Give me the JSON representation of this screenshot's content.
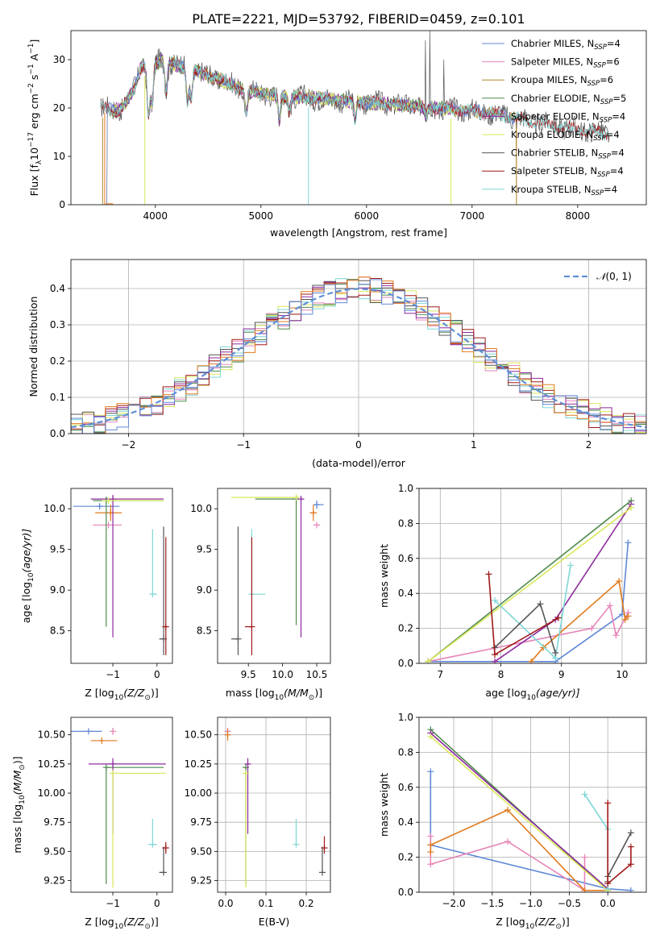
{
  "figure_title": "PLATE=2221, MJD=53792, FIBERID=0459, z=0.101",
  "colors": {
    "Chabrier MILES": "#5f88d6",
    "Salpeter MILES": "#e685b9",
    "Kroupa MILES": "#b3862a",
    "Chabrier ELODIE": "#4f8a4f",
    "Salpeter ELODIE": "#8e2a9e",
    "Kroupa ELODIE": "#d9e85a",
    "Chabrier STELIB": "#555555",
    "Salpeter STELIB": "#a01818",
    "Kroupa STELIB": "#7fd6d6",
    "orange": "#e07a1e",
    "normal": "#5f8fd6"
  },
  "chart_data": [
    {
      "id": "spectrum",
      "type": "line",
      "xlabel": "wavelength [Angstrom, rest frame]",
      "ylabel": "Flux [f",
      "ylabel_parts": [
        "Flux [f",
        "λ",
        "10",
        "−17",
        " erg cm",
        "−2",
        " s",
        "−1",
        " A",
        "−1",
        "]"
      ],
      "xlim": [
        3200,
        8650
      ],
      "ylim": [
        0,
        36
      ],
      "xticks": [
        4000,
        5000,
        6000,
        7000,
        8000
      ],
      "yticks": [
        0,
        10,
        20,
        30
      ],
      "legend_position": "upper right",
      "series": [
        {
          "name": "Chabrier MILES",
          "label": "Chabrier MILES, N",
          "sub": "SSP",
          "n": "=4"
        },
        {
          "name": "Salpeter MILES",
          "label": "Salpeter MILES, N",
          "sub": "SSP",
          "n": "=6"
        },
        {
          "name": "Kroupa MILES",
          "label": "Kroupa MILES, N",
          "sub": "SSP",
          "n": "=6"
        },
        {
          "name": "Chabrier ELODIE",
          "label": "Chabrier ELODIE, N",
          "sub": "SSP",
          "n": "=5"
        },
        {
          "name": "Salpeter ELODIE",
          "label": "Salpeter ELODIE, N",
          "sub": "SSP",
          "n": "=4"
        },
        {
          "name": "Kroupa ELODIE",
          "label": "Kroupa ELODIE, N",
          "sub": "SSP",
          "n": "=4"
        },
        {
          "name": "Chabrier STELIB",
          "label": "Chabrier STELIB, N",
          "sub": "SSP",
          "n": "=4"
        },
        {
          "name": "Salpeter STELIB",
          "label": "Salpeter STELIB, N",
          "sub": "SSP",
          "n": "=4"
        },
        {
          "name": "Kroupa STELIB",
          "label": "Kroupa STELIB, N",
          "sub": "SSP",
          "n": "=4"
        }
      ],
      "continuum_x": [
        3500,
        3650,
        3720,
        3800,
        3870,
        3950,
        4050,
        4200,
        4400,
        4600,
        4800,
        5000,
        5200,
        5500,
        5800,
        6100,
        6400,
        6700,
        7000,
        7300,
        7600,
        7900,
        8200,
        8300
      ],
      "continuum_y": [
        20,
        19.5,
        21,
        24,
        29,
        28,
        30,
        29,
        27.5,
        26,
        24,
        23,
        22.5,
        22,
        21.5,
        21,
        20.5,
        20,
        19.5,
        18.5,
        17,
        16,
        15,
        14.8
      ],
      "absorption_features": [
        {
          "x": 3934,
          "depth": 10
        },
        {
          "x": 3968,
          "depth": 8
        },
        {
          "x": 4102,
          "depth": 6
        },
        {
          "x": 4304,
          "depth": 7
        },
        {
          "x": 4340,
          "depth": 6
        },
        {
          "x": 4861,
          "depth": 5
        },
        {
          "x": 5175,
          "depth": 5
        },
        {
          "x": 5270,
          "depth": 3
        },
        {
          "x": 5890,
          "depth": 4
        },
        {
          "x": 6563,
          "depth": 2
        }
      ],
      "drops_to_zero": [
        3500,
        3900,
        5450,
        6800,
        7420
      ],
      "spikes": [
        {
          "x": 6560,
          "y": 34
        },
        {
          "x": 6600,
          "y": 36
        },
        {
          "x": 6730,
          "y": 30
        }
      ]
    },
    {
      "id": "residuals",
      "type": "step",
      "xlabel": "(data-model)/error",
      "ylabel": "Normed distribution",
      "xlim": [
        -2.5,
        2.5
      ],
      "ylim": [
        0,
        0.48
      ],
      "xticks": [
        -2,
        -1,
        0,
        1,
        2
      ],
      "yticks": [
        0.0,
        0.1,
        0.2,
        0.3,
        0.4
      ],
      "grid": true,
      "legend_position": "upper right",
      "normal_label": "(0, 1)",
      "bin_width": 0.1
    },
    {
      "id": "age_vs_Z",
      "type": "errorbar",
      "xlabel": "Z [log",
      "xlabel_sub": "10",
      "xlabel_rest": "(Z/Z",
      "ylabel": "age  [log",
      "ylabel_sub": "10",
      "ylabel_rest": "(age/yr)]",
      "xlim": [
        -1.95,
        0.35
      ],
      "ylim": [
        8.1,
        10.25
      ],
      "xticks": [
        -1,
        0
      ],
      "yticks": [
        8.5,
        9.0,
        9.5,
        10.0
      ],
      "points": [
        {
          "s": "Chabrier MILES",
          "x": -1.3,
          "y": 10.03,
          "xerr": [
            0.6,
            0.45
          ],
          "yerr": [
            0.03,
            0.03
          ]
        },
        {
          "s": "Salpeter MILES",
          "x": -1.1,
          "y": 9.8,
          "xerr": [
            0.35,
            0.3
          ],
          "yerr": [
            0.0,
            0.0
          ]
        },
        {
          "s": "orange",
          "x": -1.05,
          "y": 9.95,
          "xerr": [
            0.35,
            0.25
          ],
          "yerr": [
            0.1,
            0.1
          ]
        },
        {
          "s": "Chabrier ELODIE",
          "x": -1.15,
          "y": 10.1,
          "xerr": [
            0.3,
            1.3
          ],
          "yerr": [
            1.55,
            0.05
          ]
        },
        {
          "s": "Salpeter ELODIE",
          "x": -1.0,
          "y": 10.12,
          "xerr": [
            0.5,
            1.15
          ],
          "yerr": [
            1.7,
            0.05
          ]
        },
        {
          "s": "Kroupa ELODIE",
          "x": -1.1,
          "y": 10.1,
          "xerr": [
            0.15,
            1.25
          ],
          "yerr": [
            0.0,
            0.0
          ]
        },
        {
          "s": "Kroupa STELIB",
          "x": -0.1,
          "y": 8.95,
          "xerr": [
            0.0,
            0.1
          ],
          "yerr": [
            0.0,
            0.8
          ]
        },
        {
          "s": "Chabrier STELIB",
          "x": 0.15,
          "y": 8.4,
          "xerr": [
            0.1,
            0.0
          ],
          "yerr": [
            0.2,
            1.38
          ]
        },
        {
          "s": "Salpeter STELIB",
          "x": 0.2,
          "y": 8.55,
          "xerr": [
            0.08,
            0.0
          ],
          "yerr": [
            0.35,
            1.1
          ]
        }
      ]
    },
    {
      "id": "age_vs_mass",
      "type": "errorbar",
      "xlabel": "mass [log",
      "xlabel_sub": "10",
      "xlabel_rest": "(M/M",
      "xlim": [
        9.05,
        10.7
      ],
      "ylim": [
        8.1,
        10.25
      ],
      "xticks": [
        9.5,
        10.0,
        10.5
      ],
      "yticks": [
        8.5,
        9.0,
        9.5,
        10.0
      ],
      "points": [
        {
          "s": "Chabrier MILES",
          "x": 10.5,
          "y": 10.05,
          "xerr": [
            0.05,
            0.1
          ],
          "yerr": [
            0.05,
            0.05
          ]
        },
        {
          "s": "Salpeter MILES",
          "x": 10.5,
          "y": 9.8,
          "xerr": [
            0.05,
            0.05
          ],
          "yerr": [
            0.0,
            0.0
          ]
        },
        {
          "s": "orange",
          "x": 10.45,
          "y": 9.95,
          "xerr": [
            0.05,
            0.05
          ],
          "yerr": [
            0.1,
            0.1
          ]
        },
        {
          "s": "Chabrier ELODIE",
          "x": 10.2,
          "y": 10.12,
          "xerr": [
            0.6,
            0.0
          ],
          "yerr": [
            1.55,
            0.03
          ]
        },
        {
          "s": "Salpeter ELODIE",
          "x": 10.27,
          "y": 10.12,
          "xerr": [
            0.0,
            0.03
          ],
          "yerr": [
            1.7,
            0.03
          ]
        },
        {
          "s": "Kroupa ELODIE",
          "x": 10.2,
          "y": 10.14,
          "xerr": [
            0.95,
            0.0
          ],
          "yerr": [
            0.0,
            0.0
          ]
        },
        {
          "s": "Kroupa STELIB",
          "x": 9.55,
          "y": 8.95,
          "xerr": [
            0.0,
            0.2
          ],
          "yerr": [
            0.0,
            0.8
          ]
        },
        {
          "s": "Chabrier STELIB",
          "x": 9.35,
          "y": 8.4,
          "xerr": [
            0.1,
            0.0
          ],
          "yerr": [
            0.2,
            1.38
          ]
        },
        {
          "s": "Salpeter STELIB",
          "x": 9.55,
          "y": 8.55,
          "xerr": [
            0.1,
            0.0
          ],
          "yerr": [
            0.35,
            1.1
          ]
        }
      ]
    },
    {
      "id": "weight_vs_age",
      "type": "line",
      "xlabel": "age  [log",
      "xlabel_sub": "10",
      "xlabel_rest": "(age/yr)]",
      "ylabel": "mass weight",
      "xlim": [
        6.65,
        10.4
      ],
      "ylim": [
        0,
        1.0
      ],
      "xticks": [
        7,
        8,
        9,
        10
      ],
      "yticks": [
        0.0,
        0.2,
        0.4,
        0.6,
        0.8,
        1.0
      ],
      "grid": true,
      "lines": [
        {
          "s": "Chabrier MILES",
          "x": [
            6.8,
            8.9,
            10.0,
            10.1
          ],
          "y": [
            0.01,
            0.01,
            0.28,
            0.69
          ]
        },
        {
          "s": "Salpeter MILES",
          "x": [
            6.8,
            9.5,
            9.8,
            9.9,
            10.1
          ],
          "y": [
            0.01,
            0.2,
            0.33,
            0.16,
            0.29
          ]
        },
        {
          "s": "orange",
          "x": [
            8.5,
            8.7,
            9.95,
            10.05,
            10.1
          ],
          "y": [
            0.01,
            0.09,
            0.47,
            0.25,
            0.27
          ]
        },
        {
          "s": "Chabrier ELODIE",
          "x": [
            6.8,
            10.15
          ],
          "y": [
            0.01,
            0.93
          ]
        },
        {
          "s": "Salpeter ELODIE",
          "x": [
            7.9,
            8.9,
            10.15
          ],
          "y": [
            0.01,
            0.25,
            0.91
          ]
        },
        {
          "s": "Kroupa ELODIE",
          "x": [
            6.8,
            10.15
          ],
          "y": [
            0.01,
            0.89
          ]
        },
        {
          "s": "Kroupa STELIB",
          "x": [
            7.9,
            8.9,
            9.15
          ],
          "y": [
            0.36,
            0.03,
            0.56
          ]
        },
        {
          "s": "Chabrier STELIB",
          "x": [
            7.9,
            8.65,
            8.9
          ],
          "y": [
            0.09,
            0.34,
            0.06
          ]
        },
        {
          "s": "Salpeter STELIB",
          "x": [
            7.8,
            7.9,
            8.95
          ],
          "y": [
            0.51,
            0.05,
            0.26
          ]
        }
      ]
    },
    {
      "id": "mass_vs_Z",
      "type": "errorbar",
      "xlabel": "Z [log",
      "xlabel_sub": "10",
      "xlabel_rest": "(Z/Z",
      "ylabel": "mass [log",
      "ylabel_sub": "10",
      "ylabel_rest": "(M/M",
      "xlim": [
        -1.95,
        0.35
      ],
      "ylim": [
        9.15,
        10.65
      ],
      "xticks": [
        -1,
        0
      ],
      "yticks": [
        9.25,
        9.5,
        9.75,
        10.0,
        10.25,
        10.5
      ],
      "points": [
        {
          "s": "Chabrier MILES",
          "x": -1.55,
          "y": 10.53,
          "xerr": [
            0.4,
            0.3
          ],
          "yerr": [
            0.0,
            0.0
          ]
        },
        {
          "s": "Salpeter MILES",
          "x": -1.0,
          "y": 10.53,
          "xerr": [
            0.0,
            0.0
          ],
          "yerr": [
            0.03,
            0.03
          ]
        },
        {
          "s": "orange",
          "x": -1.25,
          "y": 10.45,
          "xerr": [
            0.25,
            0.35
          ],
          "yerr": [
            0.0,
            0.0
          ]
        },
        {
          "s": "Chabrier ELODIE",
          "x": -1.15,
          "y": 10.22,
          "xerr": [
            0.0,
            1.3
          ],
          "yerr": [
            1.0,
            0.0
          ]
        },
        {
          "s": "Salpeter ELODIE",
          "x": -1.0,
          "y": 10.25,
          "xerr": [
            0.55,
            1.2
          ],
          "yerr": [
            0.6,
            0.05
          ]
        },
        {
          "s": "Kroupa ELODIE",
          "x": -1.0,
          "y": 10.17,
          "xerr": [
            0.0,
            1.2
          ],
          "yerr": [
            0.98,
            0.0
          ]
        },
        {
          "s": "Kroupa STELIB",
          "x": -0.1,
          "y": 9.56,
          "xerr": [
            0.1,
            0.1
          ],
          "yerr": [
            0.0,
            0.22
          ]
        },
        {
          "s": "Chabrier STELIB",
          "x": 0.15,
          "y": 9.32,
          "xerr": [
            0.1,
            0.0
          ],
          "yerr": [
            0.0,
            0.22
          ]
        },
        {
          "s": "Salpeter STELIB",
          "x": 0.2,
          "y": 9.53,
          "xerr": [
            0.08,
            0.0
          ],
          "yerr": [
            0.05,
            0.05
          ]
        }
      ]
    },
    {
      "id": "mass_vs_ebv",
      "type": "errorbar",
      "xlabel": "E(B-V)",
      "xlim": [
        -0.02,
        0.26
      ],
      "ylim": [
        9.15,
        10.65
      ],
      "xticks": [
        0.0,
        0.1,
        0.2
      ],
      "yticks": [
        9.25,
        9.5,
        9.75,
        10.0,
        10.25,
        10.5
      ],
      "grid": true,
      "points": [
        {
          "s": "Salpeter MILES",
          "x": 0.005,
          "y": 10.53,
          "yerr": [
            0.03,
            0.03
          ]
        },
        {
          "s": "orange",
          "x": 0.005,
          "y": 10.5,
          "yerr": [
            0.05,
            0.05
          ]
        },
        {
          "s": "Chabrier ELODIE",
          "x": 0.05,
          "y": 10.22,
          "yerr": [
            1.0,
            0.0
          ]
        },
        {
          "s": "Salpeter ELODIE",
          "x": 0.055,
          "y": 10.25,
          "yerr": [
            0.6,
            0.05
          ]
        },
        {
          "s": "Kroupa ELODIE",
          "x": 0.05,
          "y": 10.17,
          "yerr": [
            0.98,
            0.0
          ]
        },
        {
          "s": "Kroupa STELIB",
          "x": 0.175,
          "y": 9.56,
          "yerr": [
            0.0,
            0.22
          ]
        },
        {
          "s": "Chabrier STELIB",
          "x": 0.24,
          "y": 9.32,
          "yerr": [
            0.0,
            0.22
          ]
        },
        {
          "s": "Salpeter STELIB",
          "x": 0.245,
          "y": 9.53,
          "yerr": [
            0.05,
            0.1
          ]
        }
      ]
    },
    {
      "id": "weight_vs_Z",
      "type": "line",
      "xlabel": "Z [log",
      "xlabel_sub": "10",
      "xlabel_rest": "(Z/Z",
      "ylabel": "mass weight",
      "xlim": [
        -2.45,
        0.5
      ],
      "ylim": [
        0,
        1.0
      ],
      "xticks": [
        -2.0,
        -1.5,
        -1.0,
        -0.5,
        0.0
      ],
      "yticks": [
        0.0,
        0.2,
        0.4,
        0.6,
        0.8,
        1.0
      ],
      "grid": true,
      "lines": [
        {
          "s": "Chabrier MILES",
          "x": [
            -2.3,
            -2.3,
            0.0,
            0.3
          ],
          "y": [
            0.69,
            0.27,
            0.02,
            0.01
          ]
        },
        {
          "s": "Salpeter MILES",
          "x": [
            -2.3,
            -2.3,
            -1.3,
            -0.3,
            -0.3
          ],
          "y": [
            0.32,
            0.16,
            0.29,
            0.01,
            0.2
          ]
        },
        {
          "s": "orange",
          "x": [
            -2.3,
            -2.3,
            -1.3,
            -0.3,
            0.0
          ],
          "y": [
            0.23,
            0.27,
            0.47,
            0.01,
            0.01
          ]
        },
        {
          "s": "Chabrier ELODIE",
          "x": [
            -2.3,
            0.0
          ],
          "y": [
            0.93,
            0.01
          ]
        },
        {
          "s": "Salpeter ELODIE",
          "x": [
            -2.3,
            0.0
          ],
          "y": [
            0.91,
            0.02
          ]
        },
        {
          "s": "Kroupa ELODIE",
          "x": [
            -2.3,
            0.0
          ],
          "y": [
            0.89,
            0.01
          ]
        },
        {
          "s": "Kroupa STELIB",
          "x": [
            -0.3,
            0.0,
            0.0
          ],
          "y": [
            0.56,
            0.36,
            0.02
          ]
        },
        {
          "s": "Chabrier STELIB",
          "x": [
            0.0,
            0.0,
            0.3
          ],
          "y": [
            0.06,
            0.09,
            0.34
          ]
        },
        {
          "s": "Salpeter STELIB",
          "x": [
            0.0,
            0.0,
            0.3,
            0.3
          ],
          "y": [
            0.51,
            0.05,
            0.16,
            0.26
          ]
        }
      ]
    }
  ]
}
